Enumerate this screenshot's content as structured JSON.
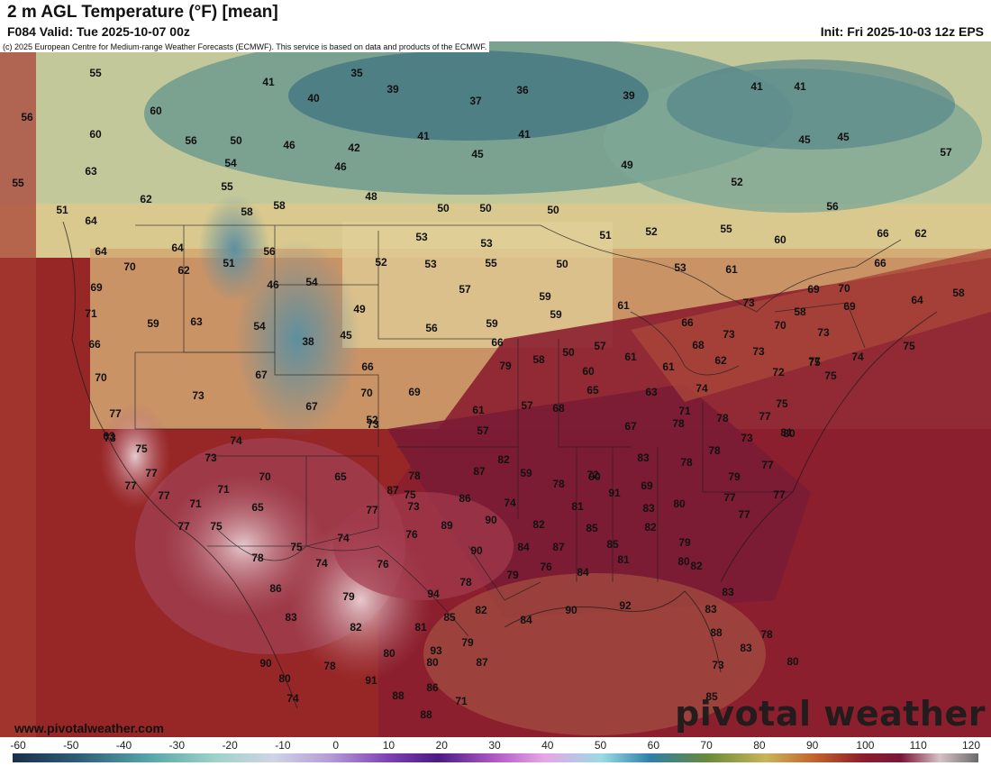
{
  "header": {
    "title": "2 m AGL Temperature (°F) [mean]",
    "valid": "F084 Valid: Tue 2025-10-07 00z",
    "init": "Init: Fri 2025-10-03 12z EPS"
  },
  "map": {
    "copyright": "(c) 2025 European Centre for Medium-range Weather Forecasts (ECMWF). This service is based on data and products of the ECMWF.",
    "website": "www.pivotalweather.com",
    "brand": "pivotal weather",
    "labels": [
      "55",
      "35",
      "41",
      "40",
      "39",
      "37",
      "36",
      "39",
      "41",
      "41",
      "56",
      "60",
      "56",
      "50",
      "46",
      "42",
      "45",
      "41",
      "41",
      "49",
      "45",
      "45",
      "57",
      "60",
      "54",
      "46",
      "63",
      "55",
      "55",
      "58",
      "48",
      "50",
      "50",
      "50",
      "52",
      "52",
      "62",
      "58",
      "51",
      "56",
      "64",
      "64",
      "64",
      "56",
      "53",
      "53",
      "51",
      "55",
      "60",
      "66",
      "62",
      "70",
      "62",
      "51",
      "46",
      "54",
      "52",
      "53",
      "55",
      "50",
      "53",
      "61",
      "66",
      "69",
      "57",
      "49",
      "56",
      "59",
      "61",
      "69",
      "70",
      "64",
      "58",
      "71",
      "59",
      "63",
      "54",
      "59",
      "38",
      "45",
      "59",
      "57",
      "66",
      "73",
      "70",
      "73",
      "58",
      "69",
      "66",
      "68",
      "73",
      "73",
      "74",
      "75",
      "70",
      "67",
      "66",
      "66",
      "79",
      "58",
      "50",
      "60",
      "61",
      "61",
      "62",
      "72",
      "75",
      "77",
      "75",
      "73",
      "70",
      "69",
      "67",
      "61",
      "52",
      "57",
      "57",
      "68",
      "65",
      "63",
      "71",
      "74",
      "78",
      "77",
      "75",
      "77",
      "73",
      "74",
      "67",
      "73",
      "78",
      "80",
      "81",
      "73",
      "63",
      "75",
      "73",
      "70",
      "65",
      "78",
      "87",
      "82",
      "59",
      "78",
      "72",
      "83",
      "78",
      "78",
      "79",
      "77",
      "77",
      "77",
      "71",
      "77",
      "71",
      "65",
      "87",
      "86",
      "74",
      "90",
      "91",
      "69",
      "83",
      "80",
      "77",
      "77",
      "77",
      "75",
      "77",
      "73",
      "89",
      "90",
      "82",
      "81",
      "85",
      "85",
      "82",
      "79",
      "77",
      "78",
      "75",
      "74",
      "76",
      "90",
      "84",
      "87",
      "84",
      "81",
      "80",
      "79",
      "76",
      "78",
      "76",
      "82",
      "83",
      "86",
      "79",
      "74",
      "75",
      "94",
      "85",
      "82",
      "84",
      "90",
      "92",
      "83",
      "82",
      "81",
      "93",
      "79",
      "90",
      "87",
      "88",
      "83",
      "83",
      "78",
      "80",
      "78",
      "80",
      "80",
      "91",
      "88",
      "86",
      "71",
      "74",
      "73",
      "88",
      "85",
      "80",
      "73",
      "83",
      "89"
    ]
  },
  "legend": {
    "ticks": [
      "-60",
      "-50",
      "-40",
      "-30",
      "-20",
      "-10",
      "0",
      "10",
      "20",
      "30",
      "40",
      "50",
      "60",
      "70",
      "80",
      "90",
      "100",
      "110",
      "120"
    ]
  },
  "colors": {
    "cold": "#2f5f7a",
    "cool": "#7fae9a",
    "mild": "#e8dca8",
    "warm": "#c2642c",
    "hot": "#8d1e2a",
    "very_hot": "#d8b7bf",
    "ocean": "#9c2a2a"
  }
}
